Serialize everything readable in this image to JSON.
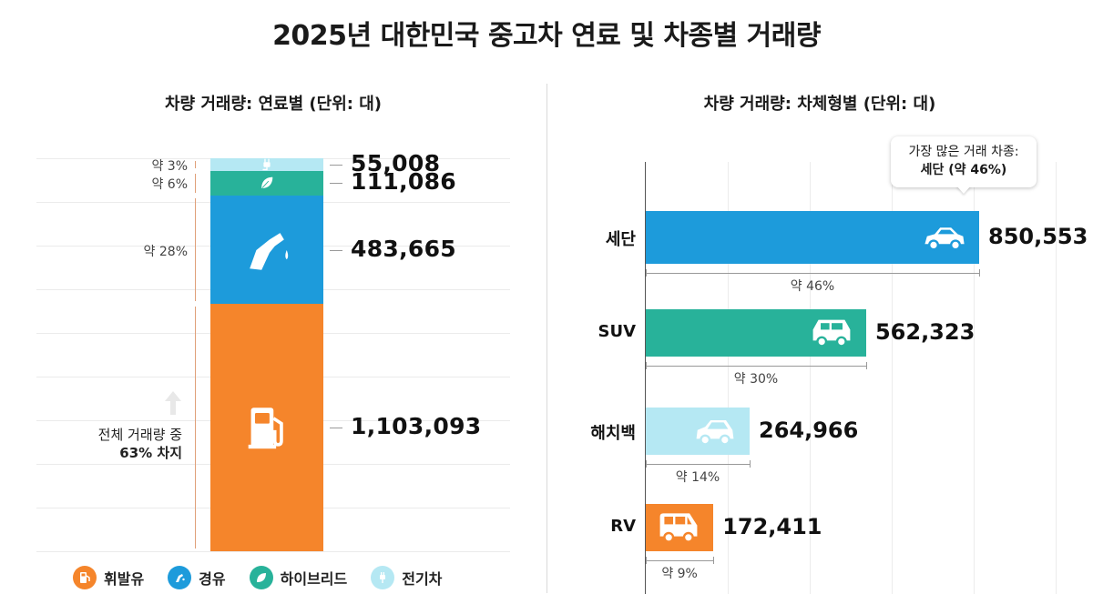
{
  "title": "2025년 대한민국 중고차 연료 및 차종별 거래량",
  "colors": {
    "gasoline": "#F5852B",
    "diesel": "#1D9BDB",
    "hybrid": "#28B29A",
    "electric": "#B5E8F3"
  },
  "chart_data": [
    {
      "type": "bar",
      "stacked": true,
      "title": "차량 거래량: 연료별 (단위: 대)",
      "categories": [
        "휘발유",
        "경유",
        "하이브리드",
        "전기차"
      ],
      "values": [
        1103093,
        483665,
        111086,
        55008
      ],
      "value_labels": [
        "1,103,093",
        "483,665",
        "111,086",
        "55,008"
      ],
      "percent_labels": [
        "",
        "약 28%",
        "약 6%",
        "약 3%"
      ],
      "icons": [
        "gas-pump-icon",
        "fuel-nozzle-icon",
        "leaf-icon",
        "plug-icon"
      ],
      "note": [
        "전체 거래량 중",
        "63% 차지"
      ],
      "legend": [
        "휘발유",
        "경유",
        "하이브리드",
        "전기차"
      ],
      "legend_placement": "bottom"
    },
    {
      "type": "bar",
      "orientation": "horizontal",
      "title": "차량 거래량: 차체형별 (단위: 대)",
      "categories": [
        "세단",
        "SUV",
        "해치백",
        "RV"
      ],
      "values": [
        850553,
        562323,
        264966,
        172411
      ],
      "value_labels": [
        "850,553",
        "562,323",
        "264,966",
        "172,411"
      ],
      "percent_labels": [
        "약 46%",
        "약 30%",
        "약 14%",
        "약 9%"
      ],
      "bar_colors": [
        "#1D9BDB",
        "#28B29A",
        "#B5E8F3",
        "#F5852B"
      ],
      "icons": [
        "sedan-icon",
        "suv-icon",
        "hatchback-icon",
        "van-icon"
      ],
      "callout": [
        "가장 많은 거래 차종:",
        "세단 (약 46%)"
      ],
      "grid": true
    }
  ]
}
